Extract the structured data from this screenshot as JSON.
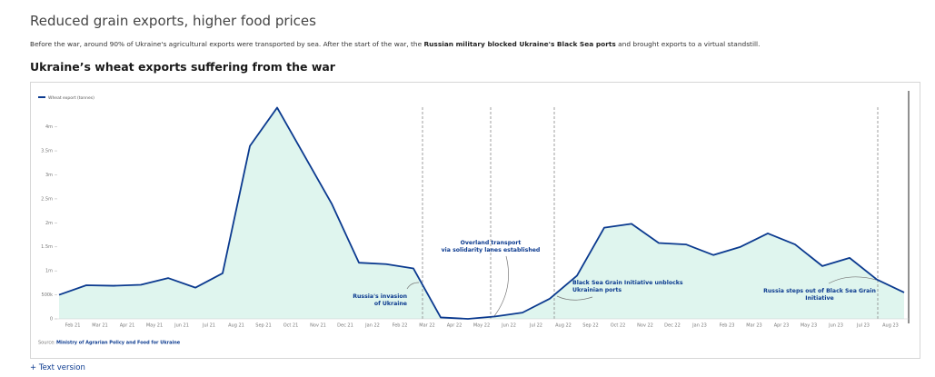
{
  "header": {
    "title": "Reduced grain exports, higher food prices",
    "text_before": "Before the war, around 90% of Ukraine's agricultural exports were transported by sea. After the start of the war, the ",
    "text_bold": "Russian military blocked Ukraine's Black Sea ports",
    "text_after": " and brought exports to a virtual standstill."
  },
  "chart_data": {
    "type": "line",
    "title": "Ukraine’s wheat exports suffering from the war",
    "categories": [
      "Feb 21",
      "Mar 21",
      "Apr 21",
      "May 21",
      "Jun 21",
      "Jul 21",
      "Aug 21",
      "Sep 21",
      "Oct 21",
      "Nov 21",
      "Dec 21",
      "Jan 22",
      "Feb 22",
      "Mar 22",
      "Apr 22",
      "May 22",
      "Jun 22",
      "Jul 22",
      "Aug 22",
      "Sep 22",
      "Oct 22",
      "Nov 22",
      "Dec 22",
      "Jan 23",
      "Feb 23",
      "Mar 23",
      "Apr 23",
      "May 23",
      "Jun 23",
      "Jul 23",
      "Aug 23",
      null
    ],
    "series": [
      {
        "name": "Wheat export (tonnes)",
        "color": "#0b3a8f",
        "fill": "#dff5ee",
        "values": [
          500000,
          700000,
          690000,
          710000,
          850000,
          650000,
          950000,
          3600000,
          4400000,
          3400000,
          2400000,
          1170000,
          1140000,
          1050000,
          30000,
          0,
          50000,
          130000,
          420000,
          900000,
          1900000,
          1980000,
          1580000,
          1550000,
          1330000,
          1500000,
          1780000,
          1550000,
          1100000,
          1270000,
          820000,
          550000
        ]
      }
    ],
    "ylim": [
      0,
      4750000
    ],
    "yticks": [
      0,
      {
        "value": 500000,
        "label": "500k"
      },
      {
        "value": 1000000,
        "label": "1m"
      },
      {
        "value": 1500000,
        "label": "1.5m"
      },
      {
        "value": 2000000,
        "label": "2m"
      },
      {
        "value": 2500000,
        "label": "2.5m"
      },
      {
        "value": 3000000,
        "label": "3m"
      },
      {
        "value": 3500000,
        "label": "3.5m"
      },
      {
        "value": 4000000,
        "label": "4m"
      }
    ],
    "annotations": [
      {
        "lines": [
          "Russia's invasion",
          "of Ukraine"
        ]
      },
      {
        "lines": [
          "Overland transport",
          "via solidarity lanes established"
        ]
      },
      {
        "lines": [
          "Black Sea Grain Initiative unblocks",
          "Ukrainian ports"
        ]
      },
      {
        "lines": [
          "Russia steps out of Black Sea Grain",
          "Initiative"
        ]
      }
    ],
    "source_label": "Source:",
    "source": "Ministry of Agrarian Policy and Food for Ukraine"
  },
  "footer": {
    "link": "+ Text version"
  }
}
